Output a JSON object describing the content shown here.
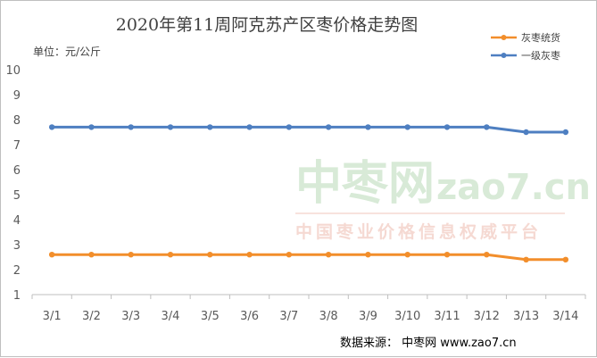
{
  "chart_data": {
    "type": "line",
    "title": "2020年第11周阿克苏产区枣价格走势图",
    "unit_label": "单位：元/公斤",
    "categories": [
      "3/1",
      "3/2",
      "3/3",
      "3/4",
      "3/5",
      "3/6",
      "3/7",
      "3/8",
      "3/9",
      "3/10",
      "3/11",
      "3/12",
      "3/13",
      "3/14"
    ],
    "series": [
      {
        "name": "灰枣统货",
        "color": "#f28e2b",
        "values": [
          2.6,
          2.6,
          2.6,
          2.6,
          2.6,
          2.6,
          2.6,
          2.6,
          2.6,
          2.6,
          2.6,
          2.6,
          2.4,
          2.4
        ]
      },
      {
        "name": "一级灰枣",
        "color": "#4e7fc1",
        "values": [
          7.7,
          7.7,
          7.7,
          7.7,
          7.7,
          7.7,
          7.7,
          7.7,
          7.7,
          7.7,
          7.7,
          7.7,
          7.5,
          7.5
        ]
      }
    ],
    "ylim": [
      1,
      10
    ],
    "yticks": [
      1,
      2,
      3,
      4,
      5,
      6,
      7,
      8,
      9,
      10
    ],
    "grid": false,
    "legend_position": "top-right"
  },
  "watermark": {
    "main": "中枣网",
    "domain": "zao7.cn",
    "slogan": "中国枣业价格信息权威平台"
  },
  "source_text": "数据来源：  中枣网 www.zao7.cn",
  "colors": {
    "axis": "#bfbfbf",
    "text": "#595959"
  }
}
